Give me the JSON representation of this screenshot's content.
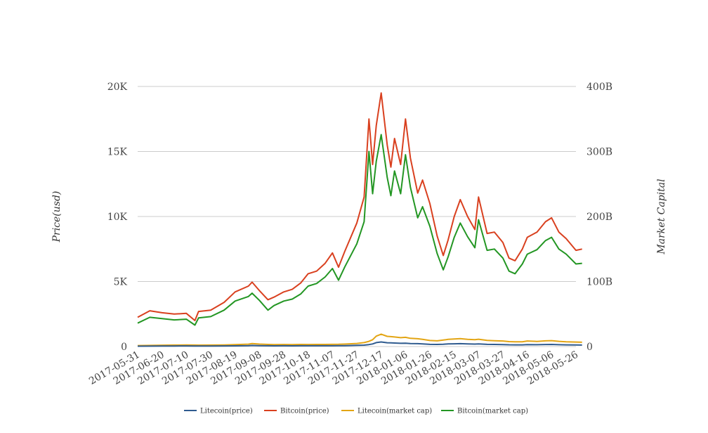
{
  "chart_data": {
    "type": "line",
    "title": "",
    "xlabel": "",
    "ylabel": "Price(usd)",
    "y2label": "Market Capital",
    "ylim": [
      0,
      20000
    ],
    "y2lim": [
      0,
      400000000000
    ],
    "grid": true,
    "legend_position": "bottom",
    "colors": {
      "litecoin_price": "#2f5b8f",
      "bitcoin_price": "#d9401f",
      "litecoin_mcap": "#e3a514",
      "bitcoin_mcap": "#239623",
      "grid": "#cccccc"
    },
    "y_ticks": [
      {
        "value": 0,
        "label": "0"
      },
      {
        "value": 5000,
        "label": "5K"
      },
      {
        "value": 10000,
        "label": "10K"
      },
      {
        "value": 15000,
        "label": "15K"
      },
      {
        "value": 20000,
        "label": "20K"
      }
    ],
    "y2_ticks": [
      {
        "value": 0,
        "label": "0"
      },
      {
        "value": 100000000000,
        "label": "100B"
      },
      {
        "value": 200000000000,
        "label": "200B"
      },
      {
        "value": 300000000000,
        "label": "300B"
      },
      {
        "value": 400000000000,
        "label": "400B"
      }
    ],
    "x_ticks": [
      "2017-05-31",
      "2017-06-20",
      "2017-07-10",
      "2017-07-30",
      "2017-08-19",
      "2017-09-08",
      "2017-09-28",
      "2017-10-18",
      "2017-11-07",
      "2017-11-27",
      "2017-12-17",
      "2018-01-06",
      "2018-01-26",
      "2018-02-15",
      "2018-03-07",
      "2018-03-27",
      "2018-04-16",
      "2018-05-06",
      "2018-05-26"
    ],
    "x": [
      "2017-05-31",
      "2017-06-10",
      "2017-06-20",
      "2017-06-30",
      "2017-07-10",
      "2017-07-17",
      "2017-07-20",
      "2017-07-30",
      "2017-08-10",
      "2017-08-19",
      "2017-08-30",
      "2017-09-02",
      "2017-09-08",
      "2017-09-15",
      "2017-09-20",
      "2017-09-28",
      "2017-10-05",
      "2017-10-12",
      "2017-10-18",
      "2017-10-25",
      "2017-11-01",
      "2017-11-07",
      "2017-11-12",
      "2017-11-17",
      "2017-11-27",
      "2017-12-03",
      "2017-12-07",
      "2017-12-10",
      "2017-12-13",
      "2017-12-17",
      "2017-12-22",
      "2017-12-25",
      "2017-12-28",
      "2018-01-02",
      "2018-01-06",
      "2018-01-10",
      "2018-01-16",
      "2018-01-20",
      "2018-01-26",
      "2018-02-01",
      "2018-02-06",
      "2018-02-10",
      "2018-02-15",
      "2018-02-20",
      "2018-02-26",
      "2018-03-04",
      "2018-03-07",
      "2018-03-14",
      "2018-03-20",
      "2018-03-27",
      "2018-04-01",
      "2018-04-06",
      "2018-04-12",
      "2018-04-16",
      "2018-04-24",
      "2018-05-01",
      "2018-05-06",
      "2018-05-12",
      "2018-05-18",
      "2018-05-26",
      "2018-05-31"
    ],
    "series": [
      {
        "name": "Litecoin(price)",
        "axis": "left",
        "key": "litecoin_price",
        "values": [
          28,
          30,
          40,
          45,
          48,
          45,
          42,
          45,
          48,
          55,
          68,
          85,
          72,
          60,
          55,
          58,
          55,
          60,
          58,
          60,
          60,
          62,
          65,
          70,
          90,
          110,
          150,
          200,
          300,
          350,
          290,
          280,
          270,
          250,
          260,
          230,
          220,
          200,
          170,
          160,
          180,
          200,
          210,
          220,
          200,
          190,
          200,
          170,
          160,
          150,
          135,
          130,
          130,
          150,
          140,
          155,
          160,
          140,
          130,
          120,
          115
        ]
      },
      {
        "name": "Bitcoin(price)",
        "axis": "left",
        "key": "bitcoin_price",
        "values": [
          2250,
          2750,
          2600,
          2500,
          2550,
          2000,
          2700,
          2800,
          3400,
          4200,
          4650,
          4950,
          4300,
          3600,
          3800,
          4200,
          4400,
          4900,
          5600,
          5800,
          6400,
          7200,
          6100,
          7300,
          9500,
          11500,
          17500,
          14000,
          17000,
          19500,
          15500,
          13800,
          16000,
          14000,
          17500,
          14500,
          11800,
          12800,
          11000,
          8500,
          7000,
          8200,
          10000,
          11300,
          10000,
          9000,
          11500,
          8700,
          8800,
          8000,
          6800,
          6600,
          7500,
          8400,
          8800,
          9600,
          9900,
          8800,
          8300,
          7400,
          7500
        ]
      },
      {
        "name": "Litecoin(market cap)",
        "axis": "right",
        "key": "litecoin_mcap",
        "values": [
          1500000000,
          1700000000,
          2100000000,
          2300000000,
          2400000000,
          2300000000,
          2200000000,
          2300000000,
          2500000000,
          2900000000,
          3700000000,
          4500000000,
          3800000000,
          3200000000,
          2900000000,
          3100000000,
          2900000000,
          3200000000,
          3100000000,
          3200000000,
          3200000000,
          3300000000,
          3500000000,
          3800000000,
          4800000000,
          6000000000,
          8000000000,
          10500000000,
          16000000000,
          19000000000,
          15700000000,
          15200000000,
          14700000000,
          13600000000,
          14200000000,
          12600000000,
          12000000000,
          11000000000,
          9300000000,
          8800000000,
          9900000000,
          11000000000,
          11600000000,
          12200000000,
          11100000000,
          10600000000,
          11200000000,
          9500000000,
          9000000000,
          8500000000,
          7600000000,
          7300000000,
          7400000000,
          8500000000,
          7900000000,
          8800000000,
          9100000000,
          8000000000,
          7400000000,
          6900000000,
          6600000000
        ]
      },
      {
        "name": "Bitcoin(market cap)",
        "axis": "right",
        "key": "bitcoin_mcap",
        "values": [
          36000000000,
          45000000000,
          43000000000,
          41000000000,
          42000000000,
          33000000000,
          44000000000,
          46000000000,
          56000000000,
          70000000000,
          77000000000,
          82000000000,
          71000000000,
          56000000000,
          63000000000,
          70000000000,
          73000000000,
          81000000000,
          93000000000,
          97000000000,
          107000000000,
          120000000000,
          102000000000,
          122000000000,
          158000000000,
          192000000000,
          300000000000,
          235000000000,
          285000000000,
          326000000000,
          260000000000,
          232000000000,
          270000000000,
          235000000000,
          295000000000,
          245000000000,
          198000000000,
          215000000000,
          185000000000,
          143000000000,
          118000000000,
          138000000000,
          168000000000,
          190000000000,
          169000000000,
          152000000000,
          195000000000,
          148000000000,
          150000000000,
          136000000000,
          116000000000,
          112000000000,
          127000000000,
          142000000000,
          149000000000,
          163000000000,
          168000000000,
          150000000000,
          142000000000,
          127000000000,
          128000000000
        ]
      }
    ]
  }
}
